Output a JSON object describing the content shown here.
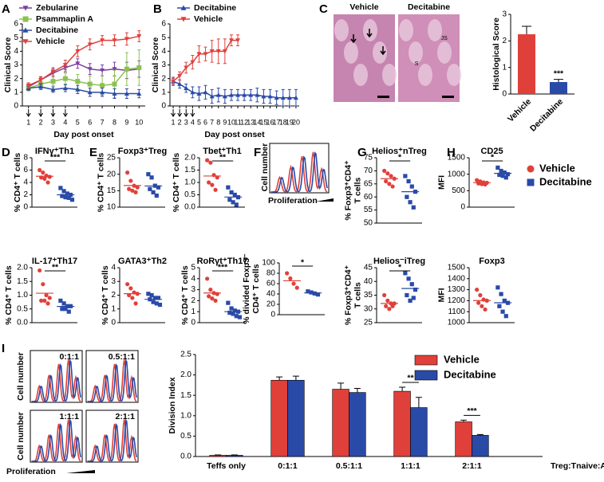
{
  "chart_data": [
    {
      "type": "line",
      "panel": "A",
      "xlabel": "Day post onset",
      "ylabel": "Clinical Score",
      "x": [
        1,
        2,
        3,
        4,
        5,
        6,
        7,
        8,
        9,
        10
      ],
      "xlim": [
        0.5,
        10.5
      ],
      "xticks": [
        1,
        2,
        3,
        4,
        5,
        6,
        7,
        8,
        9,
        10
      ],
      "ylim": [
        0,
        6
      ],
      "yticks": [
        0,
        1,
        2,
        3,
        4,
        5,
        6
      ],
      "legend": "top-left",
      "series": [
        {
          "name": "Zebularine",
          "color": "#7b3fa0",
          "marker": "triangle-down",
          "values": [
            1.4,
            1.9,
            2.4,
            2.8,
            3.1,
            2.7,
            2.6,
            2.7,
            2.6,
            2.7
          ],
          "errors": [
            0.2,
            0.2,
            0.3,
            0.3,
            0.35,
            0.4,
            0.4,
            0.5,
            0.6,
            0.6
          ]
        },
        {
          "name": "Psammaplin A",
          "color": "#8cc152",
          "marker": "square",
          "values": [
            1.3,
            1.6,
            1.8,
            2.0,
            1.8,
            1.6,
            1.5,
            1.6,
            2.7,
            2.8
          ],
          "errors": [
            0.2,
            0.2,
            0.3,
            0.4,
            0.5,
            0.6,
            0.7,
            1.0,
            1.2,
            1.3
          ]
        },
        {
          "name": "Decitabine",
          "color": "#2a4aa8",
          "marker": "triangle-up",
          "values": [
            1.3,
            1.4,
            1.2,
            1.3,
            1.2,
            1.0,
            1.0,
            0.9,
            0.9,
            0.9
          ],
          "errors": [
            0.15,
            0.2,
            0.2,
            0.25,
            0.3,
            0.3,
            0.3,
            0.35,
            0.35,
            0.3
          ]
        },
        {
          "name": "Vehicle",
          "color": "#e0403a",
          "marker": "triangle-down",
          "values": [
            1.5,
            1.9,
            2.5,
            3.0,
            4.0,
            4.5,
            4.8,
            4.8,
            4.9,
            5.1
          ],
          "errors": [
            0.2,
            0.25,
            0.3,
            0.35,
            0.4,
            0.4,
            0.35,
            0.4,
            0.45,
            0.4
          ]
        }
      ]
    },
    {
      "type": "line",
      "panel": "B",
      "xlabel": "Day post onset",
      "ylabel": "Clinical Score",
      "x": [
        1,
        2,
        3,
        4,
        5,
        6,
        7,
        8,
        9,
        10,
        11,
        12,
        13,
        14,
        15,
        16,
        17,
        18,
        19,
        20
      ],
      "xlim": [
        0.5,
        20.5
      ],
      "xticks": [
        1,
        2,
        3,
        4,
        5,
        6,
        7,
        8,
        9,
        10,
        11,
        12,
        13,
        14,
        15,
        16,
        17,
        18,
        19,
        20
      ],
      "ylim": [
        0,
        6
      ],
      "yticks": [
        0,
        1,
        2,
        3,
        4,
        5,
        6
      ],
      "legend": "top-left",
      "series": [
        {
          "name": "Decitabine",
          "color": "#2a4aa8",
          "marker": "triangle-up",
          "values": [
            1.8,
            1.6,
            1.3,
            1.0,
            0.9,
            1.0,
            0.7,
            0.8,
            0.7,
            0.8,
            0.8,
            0.8,
            0.8,
            0.8,
            0.7,
            0.7,
            0.6,
            0.6,
            0.6,
            0.6
          ],
          "errors": [
            0.3,
            0.3,
            0.3,
            0.4,
            0.5,
            0.5,
            0.5,
            0.5,
            0.5,
            0.4,
            0.4,
            0.4,
            0.4,
            0.5,
            0.5,
            0.5,
            0.5,
            0.6,
            0.6,
            0.6
          ]
        },
        {
          "name": "Vehicle",
          "color": "#e0403a",
          "marker": "triangle-down",
          "values": [
            1.8,
            2.2,
            2.8,
            3.2,
            3.8,
            3.8,
            4.0,
            4.0,
            4.0,
            4.8,
            4.8,
            null,
            null,
            null,
            null,
            null,
            null,
            null,
            null,
            null
          ],
          "errors": [
            0.2,
            0.3,
            0.4,
            0.5,
            0.6,
            0.5,
            0.8,
            0.9,
            0.9,
            0.4,
            0.4,
            null,
            null,
            null,
            null,
            null,
            null,
            null,
            null,
            null
          ]
        }
      ]
    },
    {
      "type": "image",
      "panel": "C",
      "labels": [
        "Vehicle",
        "Decitabine"
      ],
      "annotations": [
        "JS",
        "S"
      ]
    },
    {
      "type": "bar",
      "ylabel": "Histological Score",
      "categories": [
        "Vehicle",
        "Decitabine"
      ],
      "values": [
        2.25,
        0.45
      ],
      "errors": [
        0.3,
        0.1
      ],
      "colors": [
        "#e0403a",
        "#2a4aa8"
      ],
      "significance": [
        null,
        "***"
      ],
      "ylim": [
        0,
        3
      ],
      "yticks": [
        0,
        1,
        2,
        3
      ]
    },
    {
      "type": "dot",
      "panel": "D",
      "title": "IFNγ⁺Th1",
      "ylabel": "% CD4⁺ T cells",
      "ylim": [
        0,
        8
      ],
      "yticks": [
        0,
        2,
        4,
        6,
        8
      ],
      "significance": "***",
      "groups": [
        {
          "color": "#e0403a",
          "marker": "circle",
          "values": [
            6.0,
            5.6,
            5.1,
            4.9,
            4.8,
            4.6,
            4.0
          ],
          "mean": 5.0
        },
        {
          "color": "#2a4aa8",
          "marker": "square",
          "values": [
            3.1,
            2.6,
            2.2,
            2.0,
            1.8,
            1.6,
            1.5,
            1.2
          ],
          "mean": 2.0
        }
      ]
    },
    {
      "type": "dot",
      "title": "IL-17⁺Th17",
      "ylabel": "% CD4⁺ T cells",
      "ylim": [
        0,
        2
      ],
      "yticks": [
        {
          "value": 0,
          "label": "0.0"
        },
        0.5,
        {
          "value": 1,
          "label": "1.0"
        },
        1.5,
        {
          "value": 2,
          "label": "2.0"
        }
      ],
      "significance": "**",
      "groups": [
        {
          "color": "#e0403a",
          "marker": "circle",
          "values": [
            1.9,
            1.4,
            1.0,
            0.9,
            0.8,
            0.8,
            0.7
          ],
          "mean": 1.07
        },
        {
          "color": "#2a4aa8",
          "marker": "square",
          "values": [
            0.8,
            0.7,
            0.6,
            0.6,
            0.5,
            0.5,
            0.4
          ],
          "mean": 0.59
        }
      ]
    },
    {
      "type": "dot",
      "panel": "E",
      "title": "Foxp3⁺Treg",
      "ylabel": "% CD4⁺ T cells",
      "ylim": [
        10,
        25
      ],
      "yticks": [
        10,
        15,
        20,
        25
      ],
      "groups": [
        {
          "color": "#e0403a",
          "marker": "circle",
          "values": [
            20.5,
            18,
            16.5,
            16,
            15.5,
            15,
            14.5
          ],
          "mean": 16.57
        },
        {
          "color": "#2a4aa8",
          "marker": "square",
          "values": [
            20,
            19,
            16.5,
            16,
            15.5,
            14.5,
            13.5
          ],
          "mean": 16.43
        }
      ]
    },
    {
      "type": "dot",
      "title": "Tbet⁺Th1",
      "ylabel": "% CD4⁺ T cells",
      "ylim": [
        0,
        2
      ],
      "yticks": [
        {
          "value": 0,
          "label": "0.0"
        },
        0.5,
        {
          "value": 1,
          "label": "1.0"
        },
        1.5,
        {
          "value": 2,
          "label": "2.0"
        }
      ],
      "significance": "**",
      "groups": [
        {
          "color": "#e0403a",
          "marker": "circle",
          "values": [
            1.9,
            1.8,
            1.3,
            1.2,
            1.0,
            0.9,
            0.7
          ],
          "mean": 1.26
        },
        {
          "color": "#2a4aa8",
          "marker": "square",
          "values": [
            0.8,
            0.6,
            0.5,
            0.4,
            0.3,
            0.2,
            0.1
          ],
          "mean": 0.41
        }
      ]
    },
    {
      "type": "dot",
      "title": "GATA3⁺Th2",
      "ylabel": "% CD4⁺ T cells",
      "ylim": [
        0,
        4
      ],
      "yticks": [
        0,
        1,
        2,
        3,
        4
      ],
      "groups": [
        {
          "color": "#e0403a",
          "marker": "circle",
          "values": [
            2.8,
            2.5,
            2.2,
            2.1,
            2.0,
            1.8,
            1.4
          ],
          "mean": 2.11
        },
        {
          "color": "#2a4aa8",
          "marker": "square",
          "values": [
            2.1,
            2.0,
            1.8,
            1.8,
            1.7,
            1.5,
            1.4,
            1.3
          ],
          "mean": 1.7
        }
      ]
    },
    {
      "type": "dot",
      "title": "RoRγt⁺Th17",
      "ylabel": "% CD4⁺ T cells",
      "ylim": [
        0,
        5
      ],
      "yticks": [
        0,
        1,
        2,
        3,
        4,
        5
      ],
      "significance": "***",
      "groups": [
        {
          "color": "#e0403a",
          "marker": "circle",
          "values": [
            4.0,
            3.0,
            2.7,
            2.6,
            2.4,
            2.2,
            2.0
          ],
          "mean": 2.7
        },
        {
          "color": "#2a4aa8",
          "marker": "square",
          "values": [
            1.8,
            1.3,
            1.1,
            1.0,
            0.9,
            0.8,
            0.6,
            0.5
          ],
          "mean": 1.0
        }
      ]
    },
    {
      "type": "histogram-overlay",
      "panel": "F",
      "ylabel": "Cell number",
      "xlabel": "Proliferation"
    },
    {
      "type": "dot",
      "ylabel": [
        "% divided Foxp3⁻",
        "CD4⁺ T cells"
      ],
      "ylim": [
        0,
        100
      ],
      "yticks": [
        0,
        20,
        40,
        60,
        80,
        100
      ],
      "significance": "*",
      "groups": [
        {
          "color": "#e0403a",
          "marker": "circle",
          "values": [
            80,
            70,
            60,
            52
          ],
          "mean": 65.5
        },
        {
          "color": "#2a4aa8",
          "marker": "square",
          "values": [
            45,
            43,
            41,
            39
          ],
          "mean": 42
        }
      ]
    },
    {
      "type": "dot",
      "panel": "G",
      "title": "Helios⁺nTreg",
      "ylabel": [
        "% Foxp3⁺CD4⁺",
        "T cells"
      ],
      "ylim": [
        50,
        75
      ],
      "yticks": [
        50,
        55,
        60,
        65,
        70,
        75
      ],
      "significance": "*",
      "groups": [
        {
          "color": "#e0403a",
          "marker": "circle",
          "values": [
            70,
            69,
            68,
            67,
            66,
            65,
            64
          ],
          "mean": 67
        },
        {
          "color": "#2a4aa8",
          "marker": "square",
          "values": [
            68,
            66,
            64,
            62,
            60,
            58,
            56
          ],
          "mean": 62
        }
      ]
    },
    {
      "type": "dot",
      "title": "Helios⁻iTreg",
      "ylabel": [
        "% Foxp3⁺CD4⁺",
        "T cells"
      ],
      "ylim": [
        25,
        45
      ],
      "yticks": [
        25,
        30,
        35,
        40,
        45
      ],
      "significance": "*",
      "groups": [
        {
          "color": "#e0403a",
          "marker": "circle",
          "values": [
            35,
            33,
            32,
            32,
            31,
            30,
            31
          ],
          "mean": 32
        },
        {
          "color": "#2a4aa8",
          "marker": "square",
          "values": [
            43,
            41,
            39,
            37,
            35,
            33,
            34
          ],
          "mean": 37.43
        }
      ]
    },
    {
      "type": "dot",
      "panel": "H",
      "title": "CD25",
      "ylabel": "MFI",
      "ylim": [
        0,
        1500
      ],
      "yticks": [
        0,
        500,
        1000,
        1500
      ],
      "significance": "*",
      "groups": [
        {
          "color": "#e0403a",
          "marker": "circle",
          "values": [
            820,
            780,
            750,
            740,
            720,
            700,
            690
          ],
          "mean": 742.9
        },
        {
          "color": "#2a4aa8",
          "marker": "square",
          "values": [
            1200,
            1100,
            1050,
            1000,
            980,
            950,
            900
          ],
          "mean": 1025.7
        }
      ]
    },
    {
      "type": "dot",
      "title": "Foxp3",
      "ylabel": "MFI",
      "ylim": [
        1000,
        1500
      ],
      "yticks": [
        1000,
        1100,
        1200,
        1300,
        1400,
        1500
      ],
      "groups": [
        {
          "color": "#e0403a",
          "marker": "circle",
          "values": [
            1300,
            1250,
            1210,
            1200,
            1180,
            1150,
            1120
          ],
          "mean": 1201
        },
        {
          "color": "#2a4aa8",
          "marker": "square",
          "values": [
            1320,
            1260,
            1200,
            1180,
            1150,
            1100,
            1060
          ],
          "mean": 1181
        }
      ]
    },
    {
      "type": "legend",
      "series": [
        {
          "name": "Vehicle",
          "color": "#e0403a",
          "marker": "circle"
        },
        {
          "name": "Decitabine",
          "color": "#2a4aa8",
          "marker": "square"
        }
      ]
    },
    {
      "type": "histogram-overlay",
      "panel": "I",
      "ylabel": "Cell number",
      "xlabel": "Proliferation",
      "insets": [
        "0:1:1",
        "0.5:1:1",
        "1:1:1",
        "2:1:1"
      ]
    },
    {
      "type": "groupbar",
      "ylabel": "Division Index",
      "xlabel": "Treg:Tnaive:APC",
      "categories": [
        "Teffs only",
        "0:1:1",
        "0.5:1:1",
        "1:1:1",
        "2:1:1"
      ],
      "ylim": [
        0,
        2.5
      ],
      "yticks": [
        {
          "value": 0,
          "label": "0.0"
        },
        0.5,
        {
          "value": 1,
          "label": "1.0"
        },
        1.5,
        {
          "value": 2,
          "label": "2.0"
        },
        2.5
      ],
      "significance": [
        null,
        null,
        null,
        "**",
        "***"
      ],
      "legend": "top-right",
      "series": [
        {
          "name": "Vehicle",
          "color": "#e0403a",
          "values": [
            0.03,
            1.87,
            1.65,
            1.6,
            0.85
          ],
          "errors": [
            0.01,
            0.08,
            0.15,
            0.1,
            0.04
          ]
        },
        {
          "name": "Decitabine",
          "color": "#2a4aa8",
          "values": [
            0.03,
            1.87,
            1.57,
            1.2,
            0.52
          ],
          "errors": [
            0.01,
            0.1,
            0.1,
            0.25,
            0.02
          ]
        }
      ]
    }
  ]
}
